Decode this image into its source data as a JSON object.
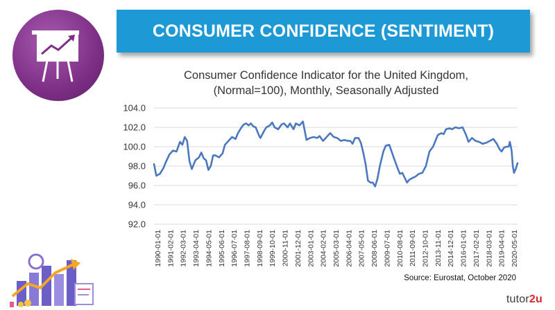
{
  "header": {
    "title": "CONSUMER CONFIDENCE (SENTIMENT)"
  },
  "chart_data": {
    "type": "line",
    "title_line1": "Consumer Confidence Indicator for the United Kingdom,",
    "title_line2": "(Normal=100), Monthly, Seasonally Adjusted",
    "xlabel": "",
    "ylabel": "",
    "ylim": [
      92.0,
      104.0
    ],
    "yticks": [
      "92.0",
      "94.0",
      "96.0",
      "98.0",
      "100.0",
      "102.0",
      "104.0"
    ],
    "xticks": [
      "1990-01-01",
      "1991-02-01",
      "1992-03-01",
      "1993-04-01",
      "1994-05-01",
      "1995-06-01",
      "1996-07-01",
      "1997-08-01",
      "1998-09-01",
      "1999-10-01",
      "2000-11-01",
      "2001-12-01",
      "2003-01-01",
      "2004-02-01",
      "2005-03-01",
      "2006-04-01",
      "2007-05-01",
      "2008-06-01",
      "2009-07-01",
      "2010-08-01",
      "2011-09-01",
      "2012-10-01",
      "2013-11-01",
      "2014-12-01",
      "2016-01-01",
      "2017-02-01",
      "2018-03-01",
      "2019-04-01",
      "2020-05-01"
    ],
    "grid": "horizontal",
    "series": [
      {
        "name": "Consumer Confidence Indicator",
        "color": "#4a78be",
        "points": [
          [
            1990.0,
            98.2
          ],
          [
            1990.2,
            97.0
          ],
          [
            1990.5,
            97.2
          ],
          [
            1990.8,
            97.8
          ],
          [
            1991.0,
            98.4
          ],
          [
            1991.3,
            99.2
          ],
          [
            1991.6,
            99.6
          ],
          [
            1991.9,
            99.5
          ],
          [
            1992.2,
            100.5
          ],
          [
            1992.4,
            100.2
          ],
          [
            1992.6,
            101.0
          ],
          [
            1992.8,
            100.6
          ],
          [
            1993.0,
            98.5
          ],
          [
            1993.2,
            97.7
          ],
          [
            1993.5,
            98.6
          ],
          [
            1993.8,
            98.9
          ],
          [
            1994.0,
            99.4
          ],
          [
            1994.2,
            98.8
          ],
          [
            1994.4,
            98.6
          ],
          [
            1994.6,
            97.6
          ],
          [
            1994.8,
            98.0
          ],
          [
            1995.0,
            99.1
          ],
          [
            1995.2,
            99.1
          ],
          [
            1995.5,
            98.9
          ],
          [
            1995.8,
            99.3
          ],
          [
            1996.0,
            100.2
          ],
          [
            1996.3,
            100.6
          ],
          [
            1996.6,
            101.0
          ],
          [
            1996.9,
            100.8
          ],
          [
            1997.1,
            101.4
          ],
          [
            1997.4,
            102.0
          ],
          [
            1997.6,
            102.3
          ],
          [
            1997.8,
            102.4
          ],
          [
            1998.0,
            102.2
          ],
          [
            1998.2,
            102.4
          ],
          [
            1998.4,
            102.1
          ],
          [
            1998.6,
            102.0
          ],
          [
            1998.9,
            101.1
          ],
          [
            1999.0,
            100.9
          ],
          [
            1999.3,
            101.6
          ],
          [
            1999.5,
            102.0
          ],
          [
            1999.8,
            102.2
          ],
          [
            2000.0,
            102.5
          ],
          [
            2000.2,
            102.0
          ],
          [
            2000.5,
            101.8
          ],
          [
            2000.8,
            102.3
          ],
          [
            2001.0,
            102.4
          ],
          [
            2001.3,
            102.0
          ],
          [
            2001.5,
            102.4
          ],
          [
            2001.8,
            101.8
          ],
          [
            2002.0,
            102.4
          ],
          [
            2002.3,
            102.2
          ],
          [
            2002.6,
            102.6
          ],
          [
            2002.9,
            100.7
          ],
          [
            2003.2,
            100.9
          ],
          [
            2003.5,
            101.0
          ],
          [
            2003.8,
            100.9
          ],
          [
            2004.0,
            101.1
          ],
          [
            2004.3,
            100.6
          ],
          [
            2004.6,
            101.0
          ],
          [
            2004.9,
            101.4
          ],
          [
            2005.2,
            101.0
          ],
          [
            2005.5,
            100.9
          ],
          [
            2005.8,
            100.6
          ],
          [
            2006.1,
            100.7
          ],
          [
            2006.4,
            100.6
          ],
          [
            2006.6,
            100.6
          ],
          [
            2006.8,
            100.3
          ],
          [
            2007.0,
            100.9
          ],
          [
            2007.3,
            100.9
          ],
          [
            2007.5,
            100.4
          ],
          [
            2007.7,
            99.4
          ],
          [
            2007.9,
            98.2
          ],
          [
            2008.1,
            96.5
          ],
          [
            2008.3,
            96.3
          ],
          [
            2008.5,
            96.3
          ],
          [
            2008.7,
            95.9
          ],
          [
            2008.9,
            96.7
          ],
          [
            2009.1,
            98.0
          ],
          [
            2009.4,
            99.5
          ],
          [
            2009.6,
            100.1
          ],
          [
            2009.9,
            100.2
          ],
          [
            2010.1,
            99.5
          ],
          [
            2010.3,
            98.8
          ],
          [
            2010.6,
            97.8
          ],
          [
            2010.8,
            97.2
          ],
          [
            2011.0,
            97.3
          ],
          [
            2011.2,
            96.8
          ],
          [
            2011.4,
            96.3
          ],
          [
            2011.6,
            96.6
          ],
          [
            2011.9,
            96.8
          ],
          [
            2012.1,
            96.9
          ],
          [
            2012.4,
            97.2
          ],
          [
            2012.7,
            97.3
          ],
          [
            2013.0,
            98.0
          ],
          [
            2013.3,
            99.5
          ],
          [
            2013.6,
            100.0
          ],
          [
            2013.8,
            100.6
          ],
          [
            2014.0,
            101.2
          ],
          [
            2014.3,
            101.4
          ],
          [
            2014.5,
            101.3
          ],
          [
            2014.7,
            101.8
          ],
          [
            2015.0,
            101.9
          ],
          [
            2015.2,
            101.8
          ],
          [
            2015.5,
            102.0
          ],
          [
            2015.8,
            101.9
          ],
          [
            2016.1,
            102.0
          ],
          [
            2016.4,
            101.2
          ],
          [
            2016.6,
            100.5
          ],
          [
            2016.9,
            100.9
          ],
          [
            2017.2,
            100.6
          ],
          [
            2017.5,
            100.5
          ],
          [
            2017.8,
            100.3
          ],
          [
            2018.1,
            100.4
          ],
          [
            2018.4,
            100.6
          ],
          [
            2018.7,
            100.8
          ],
          [
            2019.0,
            100.3
          ],
          [
            2019.2,
            99.8
          ],
          [
            2019.4,
            99.5
          ],
          [
            2019.6,
            99.9
          ],
          [
            2019.8,
            100.0
          ],
          [
            2020.0,
            100.0
          ],
          [
            2020.1,
            100.5
          ],
          [
            2020.25,
            99.6
          ],
          [
            2020.35,
            98.0
          ],
          [
            2020.45,
            97.3
          ],
          [
            2020.6,
            97.7
          ],
          [
            2020.75,
            98.3
          ]
        ]
      }
    ]
  },
  "source": "Source: Eurostat, October 2020",
  "brand": {
    "prefix": "tutor",
    "suffix": "2u"
  },
  "colors": {
    "banner": "#1d9ad6",
    "logo": "#7d2f86",
    "line": "#4a78be",
    "grid": "#d9d9d9"
  },
  "icons": {
    "logo": "presentation-board-icon",
    "illustration": "business-growth-illustration"
  }
}
